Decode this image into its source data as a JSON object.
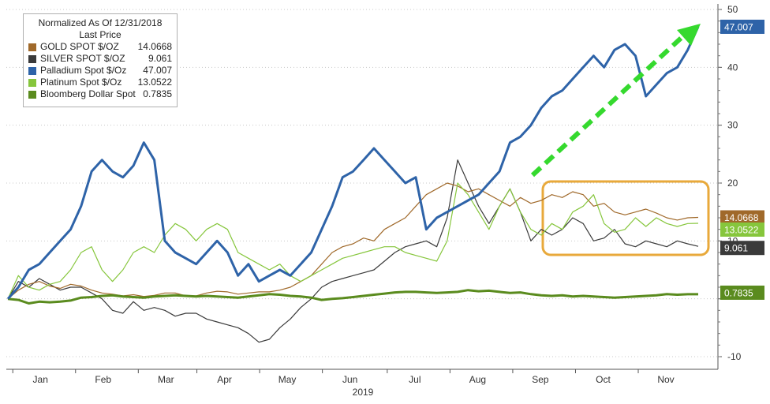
{
  "chart_data": {
    "type": "line",
    "legend": {
      "header_line1": "Normalized As Of 12/31/2018",
      "header_line2": "Last Price",
      "placement": "top-left"
    },
    "x_ticks": [
      "Jan",
      "Feb",
      "Mar",
      "Apr",
      "May",
      "Jun",
      "Jul",
      "Aug",
      "Sep",
      "Oct",
      "Nov"
    ],
    "x_year_label": "2019",
    "y_ticks": [
      "50",
      "40",
      "30",
      "20",
      "10",
      "-10"
    ],
    "ylim": [
      -10,
      50
    ],
    "y_axis_position": "right",
    "grid": "horizontal dotted",
    "series": [
      {
        "name": "GOLD SPOT $/OZ",
        "last": "14.0668",
        "color": "#a0692a",
        "x": [
          0,
          5,
          10,
          15,
          20,
          25,
          30,
          35,
          40,
          45,
          50,
          55,
          60,
          65,
          70,
          75,
          80,
          85,
          90,
          95,
          100,
          105,
          110,
          115,
          120,
          125,
          130,
          135,
          140,
          145,
          150,
          155,
          160,
          165,
          170,
          175,
          180,
          185,
          190,
          195,
          200,
          205,
          210,
          215,
          220,
          225,
          230,
          235,
          240,
          245,
          250,
          255,
          260,
          265,
          270,
          275,
          280,
          285,
          290,
          295,
          300,
          305,
          310,
          315,
          320,
          325,
          330
        ],
        "y": [
          0,
          1.5,
          2.5,
          3,
          2.2,
          1.8,
          2.5,
          2.2,
          1.5,
          1,
          0.8,
          0.5,
          0.7,
          0.4,
          0.6,
          1,
          1,
          0.5,
          0.5,
          1,
          1.3,
          1.2,
          0.8,
          1,
          1.2,
          1.2,
          1.5,
          2,
          3,
          4,
          6,
          8,
          9,
          9.5,
          10.5,
          10,
          12,
          13,
          14,
          16,
          18,
          19,
          20,
          19.5,
          18.5,
          19,
          18,
          17,
          16,
          17.5,
          16.5,
          17,
          18,
          17.5,
          18.5,
          18,
          16,
          16.5,
          15,
          14.5,
          15,
          15.5,
          14.8,
          14,
          13.6,
          14,
          14.07
        ]
      },
      {
        "name": "SILVER SPOT $/OZ",
        "last": "9.061",
        "color": "#3a3a3a",
        "x": [
          0,
          5,
          10,
          15,
          20,
          25,
          30,
          35,
          40,
          45,
          50,
          55,
          60,
          65,
          70,
          75,
          80,
          85,
          90,
          95,
          100,
          105,
          110,
          115,
          120,
          125,
          130,
          135,
          140,
          145,
          150,
          155,
          160,
          165,
          170,
          175,
          180,
          185,
          190,
          195,
          200,
          205,
          210,
          215,
          220,
          225,
          230,
          235,
          240,
          245,
          250,
          255,
          260,
          265,
          270,
          275,
          280,
          285,
          290,
          295,
          300,
          305,
          310,
          315,
          320,
          325,
          330
        ],
        "y": [
          0,
          3,
          2,
          3.5,
          2.5,
          1.5,
          2,
          2,
          1,
          0,
          -2,
          -2.5,
          -0.5,
          -2,
          -1.5,
          -2,
          -3,
          -2.5,
          -2.5,
          -3.5,
          -4,
          -4.5,
          -5,
          -6,
          -7.5,
          -7,
          -5,
          -3.5,
          -1.5,
          0,
          2,
          3,
          3.5,
          4,
          4.5,
          5,
          6.5,
          8,
          9,
          9.5,
          10,
          9,
          14,
          24,
          20,
          16,
          13,
          16,
          19,
          15,
          10,
          12,
          11,
          12,
          14,
          13,
          10,
          10.5,
          12,
          9.5,
          9,
          10,
          9.5,
          9,
          10,
          9.5,
          9.06
        ]
      },
      {
        "name": "Palladium Spot $/Oz",
        "last": "47.007",
        "color": "#2e63a8",
        "x": [
          0,
          5,
          10,
          15,
          20,
          25,
          30,
          35,
          40,
          45,
          50,
          55,
          60,
          65,
          70,
          75,
          80,
          85,
          90,
          95,
          100,
          105,
          110,
          115,
          120,
          125,
          130,
          135,
          140,
          145,
          150,
          155,
          160,
          165,
          170,
          175,
          180,
          185,
          190,
          195,
          200,
          205,
          210,
          215,
          220,
          225,
          230,
          235,
          240,
          245,
          250,
          255,
          260,
          265,
          270,
          275,
          280,
          285,
          290,
          295,
          300,
          305,
          310,
          315,
          320,
          325,
          330
        ],
        "y": [
          0,
          2,
          5,
          6,
          8,
          10,
          12,
          16,
          22,
          24,
          22,
          21,
          23,
          27,
          24,
          10,
          8,
          7,
          6,
          8,
          10,
          8,
          4,
          6,
          3,
          4,
          5,
          4,
          6,
          8,
          12,
          16,
          21,
          22,
          24,
          26,
          24,
          22,
          20,
          21,
          12,
          14,
          15,
          16,
          17,
          18,
          20,
          22,
          27,
          28,
          30,
          33,
          35,
          36,
          38,
          40,
          42,
          40,
          43,
          44,
          42,
          35,
          37,
          39,
          40,
          43,
          47.01
        ]
      },
      {
        "name": "Platinum Spot $/Oz",
        "last": "13.0522",
        "color": "#86c63c",
        "x": [
          0,
          5,
          10,
          15,
          20,
          25,
          30,
          35,
          40,
          45,
          50,
          55,
          60,
          65,
          70,
          75,
          80,
          85,
          90,
          95,
          100,
          105,
          110,
          115,
          120,
          125,
          130,
          135,
          140,
          145,
          150,
          155,
          160,
          165,
          170,
          175,
          180,
          185,
          190,
          195,
          200,
          205,
          210,
          215,
          220,
          225,
          230,
          235,
          240,
          245,
          250,
          255,
          260,
          265,
          270,
          275,
          280,
          285,
          290,
          295,
          300,
          305,
          310,
          315,
          320,
          325,
          330
        ],
        "y": [
          0,
          4,
          2,
          1.5,
          2.5,
          3,
          5,
          8,
          9,
          5,
          3,
          5,
          8,
          9,
          8,
          11,
          13,
          12,
          10,
          12,
          13,
          12,
          8,
          7,
          6,
          5,
          6,
          4,
          3,
          4,
          5,
          6,
          7,
          7.5,
          8,
          8.5,
          9,
          9,
          8,
          7.5,
          7,
          6.5,
          10,
          20,
          18,
          15,
          12,
          16,
          19,
          15,
          12,
          11,
          13,
          12,
          15,
          16,
          18,
          13,
          11.5,
          12,
          14,
          12.5,
          14,
          13,
          12.5,
          13,
          13.05
        ]
      },
      {
        "name": "Bloomberg Dollar Spot",
        "last": "0.7835",
        "color": "#5a8b1e",
        "x": [
          0,
          5,
          10,
          15,
          20,
          25,
          30,
          35,
          40,
          45,
          50,
          55,
          60,
          65,
          70,
          75,
          80,
          85,
          90,
          95,
          100,
          105,
          110,
          115,
          120,
          125,
          130,
          135,
          140,
          145,
          150,
          155,
          160,
          165,
          170,
          175,
          180,
          185,
          190,
          195,
          200,
          205,
          210,
          215,
          220,
          225,
          230,
          235,
          240,
          245,
          250,
          255,
          260,
          265,
          270,
          275,
          280,
          285,
          290,
          295,
          300,
          305,
          310,
          315,
          320,
          325,
          330
        ],
        "y": [
          0,
          -0.2,
          -0.8,
          -0.5,
          -0.6,
          -0.5,
          -0.3,
          0.2,
          0.3,
          0.5,
          0.6,
          0.4,
          0.3,
          0.2,
          0.4,
          0.5,
          0.6,
          0.5,
          0.4,
          0.5,
          0.4,
          0.3,
          0.2,
          0.4,
          0.6,
          0.8,
          0.7,
          0.5,
          0.4,
          0.2,
          -0.2,
          0,
          0.1,
          0.3,
          0.5,
          0.7,
          0.9,
          1.1,
          1.2,
          1.2,
          1.1,
          1,
          1.1,
          1.2,
          1.5,
          1.3,
          1.4,
          1.2,
          1.0,
          1.1,
          0.8,
          0.6,
          0.5,
          0.6,
          0.4,
          0.5,
          0.4,
          0.3,
          0.2,
          0.3,
          0.4,
          0.5,
          0.6,
          0.8,
          0.7,
          0.78,
          0.78
        ]
      }
    ],
    "x_label_index": {
      "Jan": 8,
      "Feb": 38,
      "Mar": 68,
      "Apr": 96,
      "May": 126,
      "Jun": 156,
      "Jul": 187,
      "Aug": 217,
      "Sep": 247,
      "Oct": 277,
      "Nov": 307
    }
  }
}
